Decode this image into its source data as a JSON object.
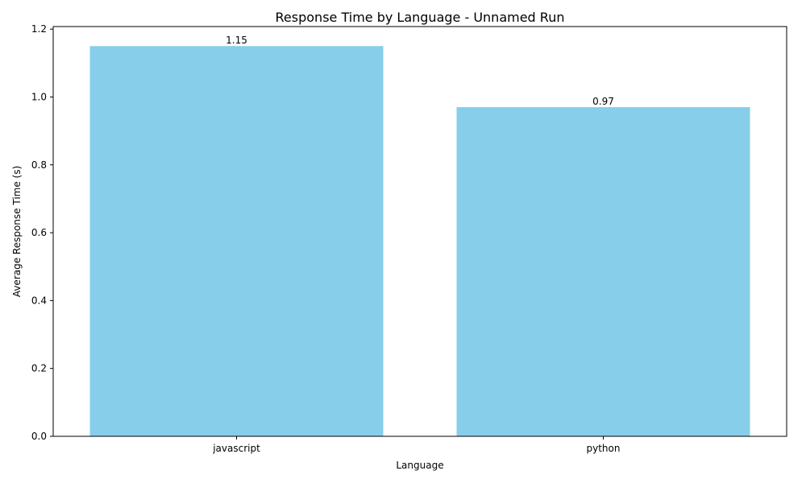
{
  "chart_data": {
    "type": "bar",
    "title": "Response Time by Language - Unnamed Run",
    "xlabel": "Language",
    "ylabel": "Average Response Time (s)",
    "categories": [
      "javascript",
      "python"
    ],
    "values": [
      1.15,
      0.97
    ],
    "data_labels": [
      "1.15",
      "0.97"
    ],
    "ylim": [
      0,
      1.2075
    ],
    "yticks": [
      0.0,
      0.2,
      0.4,
      0.6,
      0.8,
      1.0,
      1.2
    ],
    "ytick_labels": [
      "0.0",
      "0.2",
      "0.4",
      "0.6",
      "0.8",
      "1.0",
      "1.2"
    ],
    "bar_color": "#87ceeb",
    "grid": false,
    "legend": "none"
  }
}
